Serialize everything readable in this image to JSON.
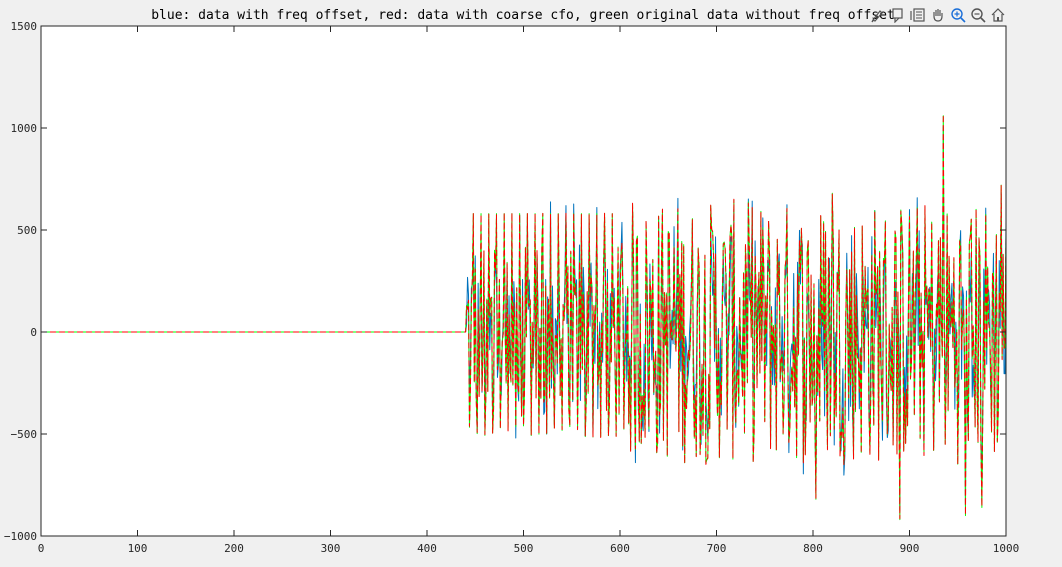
{
  "chart_data": {
    "type": "line",
    "title": "blue: data with freq offset, red: data with coarse cfo, green original data without freq offset",
    "xlabel": "",
    "ylabel": "",
    "xlim": [
      0,
      1000
    ],
    "ylim": [
      -1000,
      1500
    ],
    "x_ticks": [
      0,
      100,
      200,
      300,
      400,
      500,
      600,
      700,
      800,
      900,
      1000
    ],
    "y_ticks": [
      -1000,
      -500,
      0,
      500,
      1000,
      1500
    ],
    "x_tick_labels": [
      "0",
      "100",
      "200",
      "300",
      "400",
      "500",
      "600",
      "700",
      "800",
      "900",
      "1000"
    ],
    "y_tick_labels": [
      "−1000",
      "−500",
      "0",
      "500",
      "1000",
      "1500"
    ],
    "grid": false,
    "signal": {
      "zero_until": 440,
      "n_samples": 1000,
      "preamble_end": 600,
      "preamble_amplitude": 580,
      "data_range": [
        -650,
        650
      ],
      "notable_peaks": [
        {
          "x": 935,
          "y": 1060
        },
        {
          "x": 890,
          "y": -920
        },
        {
          "x": 958,
          "y": -900
        },
        {
          "x": 803,
          "y": -820
        },
        {
          "x": 975,
          "y": -860
        },
        {
          "x": 820,
          "y": 680
        },
        {
          "x": 995,
          "y": 720
        }
      ]
    },
    "series": [
      {
        "name": "blue: data with freq offset",
        "color": "#0072bd",
        "style": "solid"
      },
      {
        "name": "red: data with coarse cfo",
        "color": "#ff0000",
        "style": "dashed"
      },
      {
        "name": "green original data without freq offset",
        "color": "#00ff00",
        "style": "solid"
      }
    ]
  },
  "toolbar": {
    "items": [
      "brush-icon",
      "data-tip-icon",
      "link-legend-icon",
      "pan-icon",
      "zoom-in-icon",
      "zoom-out-icon",
      "home-icon"
    ]
  }
}
